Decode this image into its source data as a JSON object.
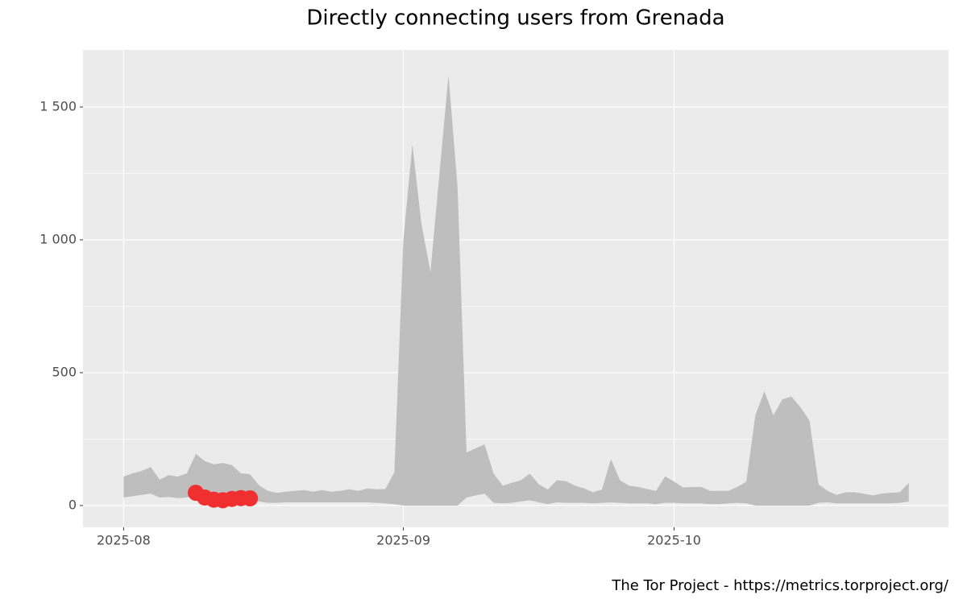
{
  "chart_data": {
    "type": "ribbon",
    "title": "Directly connecting users from Grenada",
    "caption": "The Tor Project - https://metrics.torproject.org/",
    "x": [
      0,
      1,
      2,
      3,
      4,
      5,
      6,
      7,
      8,
      9,
      10,
      11,
      12,
      13,
      14,
      15,
      16,
      17,
      18,
      19,
      20,
      21,
      22,
      23,
      24,
      25,
      26,
      27,
      28,
      29,
      30,
      31,
      32,
      33,
      34,
      35,
      36,
      37,
      38,
      39,
      40,
      41,
      42,
      43,
      44,
      45,
      46,
      47,
      48,
      49,
      50,
      51,
      52,
      53,
      54,
      55,
      56,
      57,
      58,
      59,
      60,
      61,
      62,
      63,
      64,
      65,
      66,
      67,
      68,
      69,
      70,
      71,
      72,
      73,
      74,
      75,
      76,
      77,
      78,
      79,
      80,
      81,
      82,
      83,
      84,
      85,
      86,
      87
    ],
    "upper": [
      109,
      121,
      130,
      145,
      97,
      115,
      109,
      121,
      194,
      167,
      155,
      160,
      152,
      121,
      118,
      76,
      55,
      48,
      52,
      55,
      58,
      52,
      58,
      52,
      55,
      61,
      55,
      64,
      61,
      62,
      125,
      1000,
      1360,
      1060,
      880,
      1250,
      1620,
      1200,
      200,
      215,
      230,
      120,
      75,
      85,
      95,
      120,
      80,
      60,
      95,
      92,
      75,
      65,
      50,
      60,
      175,
      95,
      75,
      70,
      62,
      55,
      110,
      90,
      68,
      70,
      70,
      55,
      55,
      55,
      70,
      90,
      340,
      430,
      340,
      400,
      410,
      370,
      320,
      80,
      55,
      40,
      50,
      50,
      45,
      38,
      45,
      48,
      50,
      85
    ],
    "lower": [
      30,
      35,
      40,
      45,
      30,
      32,
      28,
      30,
      40,
      35,
      30,
      25,
      28,
      30,
      25,
      15,
      10,
      10,
      12,
      12,
      12,
      12,
      12,
      12,
      12,
      12,
      12,
      12,
      10,
      8,
      5,
      0,
      0,
      0,
      0,
      0,
      0,
      0,
      30,
      38,
      45,
      10,
      8,
      10,
      15,
      20,
      12,
      5,
      12,
      10,
      10,
      10,
      8,
      10,
      12,
      10,
      8,
      8,
      8,
      5,
      10,
      10,
      8,
      8,
      8,
      5,
      5,
      8,
      10,
      8,
      0,
      0,
      0,
      0,
      0,
      0,
      0,
      10,
      12,
      8,
      8,
      8,
      8,
      8,
      8,
      8,
      10,
      15
    ],
    "values": [
      null,
      null,
      null,
      null,
      null,
      null,
      null,
      null,
      48,
      30,
      22,
      20,
      25,
      28,
      27,
      null,
      null,
      null,
      null,
      null,
      null,
      null,
      null,
      null,
      null,
      null,
      null,
      null,
      null,
      null,
      null,
      null,
      null,
      null,
      null,
      null,
      null,
      null,
      null,
      null,
      null,
      null,
      null,
      null,
      null,
      null,
      null,
      null,
      null,
      null,
      null,
      null,
      null,
      null,
      null,
      null,
      null,
      null,
      null,
      null,
      null,
      null,
      null,
      null,
      null,
      null,
      null,
      null,
      null,
      null,
      null,
      null,
      null,
      null,
      null,
      null,
      null,
      null,
      null,
      null,
      null,
      null,
      null,
      null,
      null,
      null,
      null,
      null
    ],
    "ribbon_color": "#bebebe",
    "color": "#f03030",
    "xlim": [
      -4.5,
      91.4
    ],
    "xticks": [
      {
        "value": 0,
        "label": "2025-08"
      },
      {
        "value": 31,
        "label": "2025-09"
      },
      {
        "value": 61,
        "label": "2025-10"
      }
    ],
    "ylim": [
      -82,
      1715
    ],
    "yticks": [
      0,
      500,
      {
        "value": 1000,
        "label": "1 000"
      },
      {
        "value": 1500,
        "label": "1 500"
      }
    ],
    "grid": true
  }
}
